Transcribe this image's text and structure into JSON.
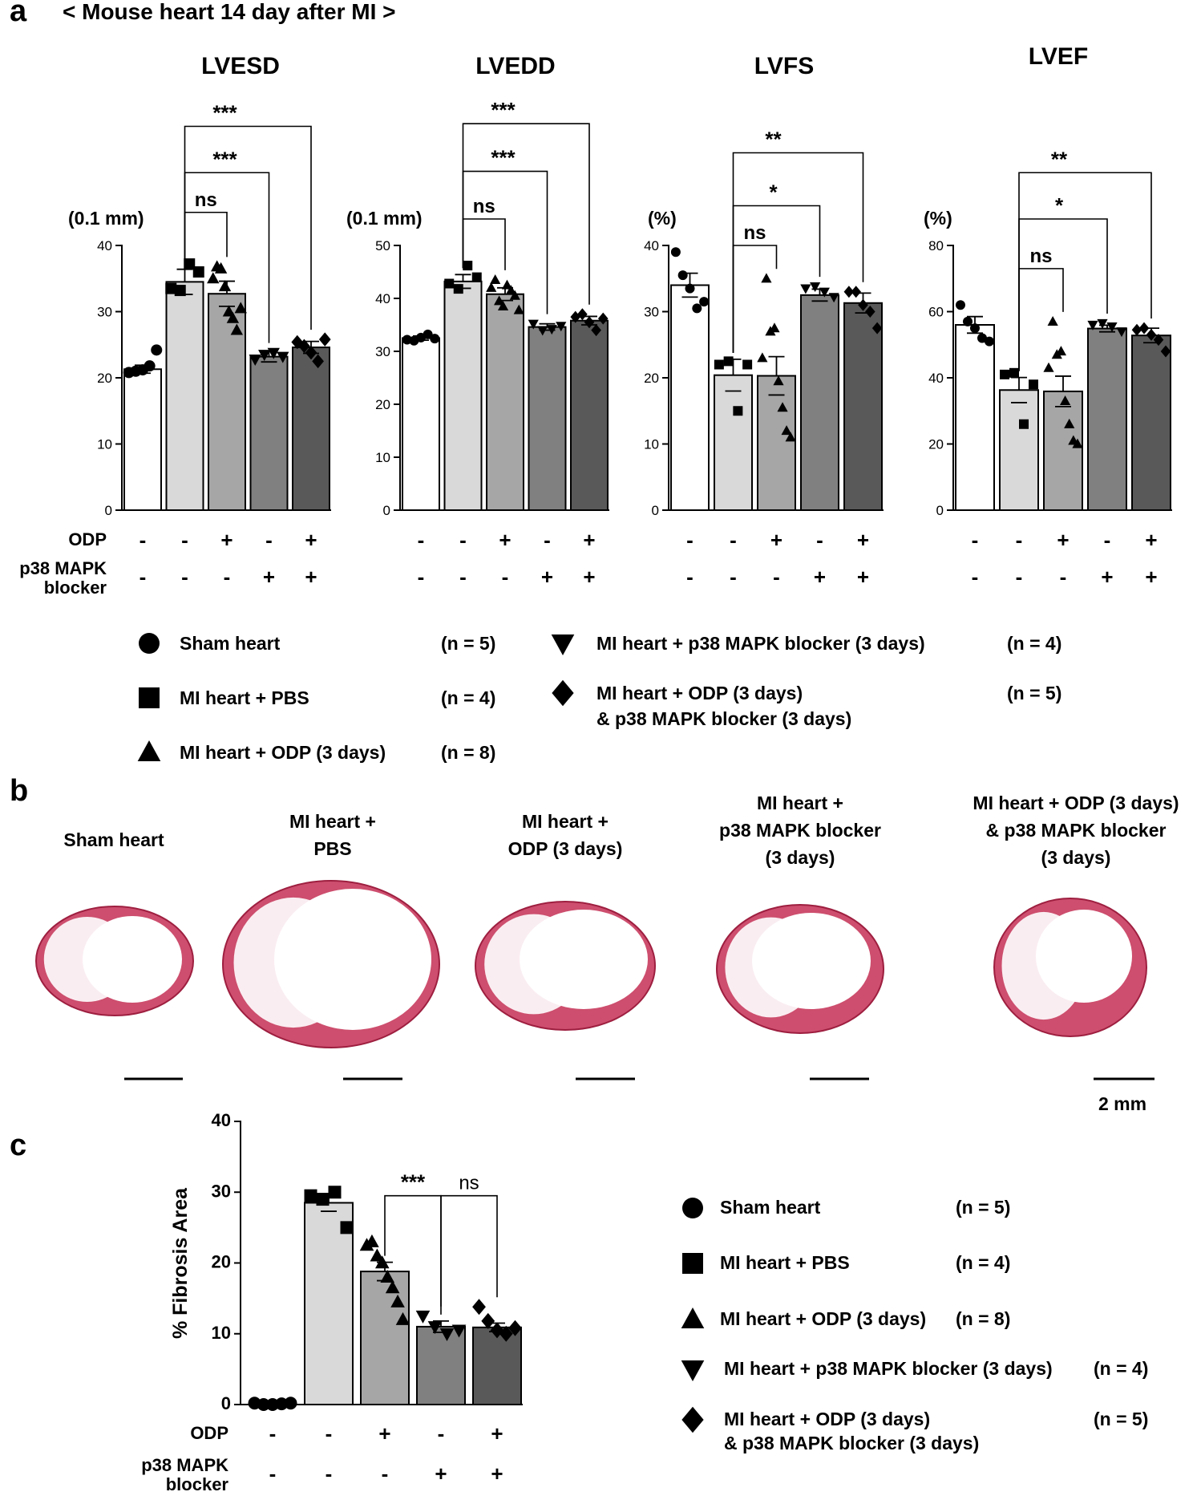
{
  "header": {
    "panel_a_label": "a",
    "title": "< Mouse heart 14 day after MI >",
    "panel_b_label": "b",
    "panel_c_label": "c"
  },
  "factor_labels": {
    "odp": "ODP",
    "p38_line1": "p38 MAPK",
    "p38_line2": "blocker"
  },
  "colors": {
    "sham": "#ffffff",
    "pbs": "#d9d9d9",
    "odp": "#a6a6a6",
    "p38": "#808080",
    "combo": "#595959",
    "tissue": "#c42f55"
  },
  "legend": {
    "items": [
      {
        "marker": "circle",
        "label": "Sham heart",
        "n": "(n = 5)"
      },
      {
        "marker": "square",
        "label": "MI heart + PBS",
        "n": "(n = 4)"
      },
      {
        "marker": "triangle-up",
        "label": "MI heart + ODP (3 days)",
        "n": "(n = 8)"
      },
      {
        "marker": "triangle-down",
        "label": "MI heart + p38 MAPK blocker (3 days)",
        "n": "(n = 4)"
      },
      {
        "marker": "diamond",
        "label": "MI heart + ODP (3 days)",
        "label2": "& p38 MAPK blocker (3 days)",
        "n": "(n = 5)"
      }
    ]
  },
  "legend_c": {
    "items": [
      {
        "marker": "circle",
        "label": "Sham heart",
        "n": "(n = 5)"
      },
      {
        "marker": "square",
        "label": "MI heart + PBS",
        "n": "(n = 4)"
      },
      {
        "marker": "triangle-up",
        "label": "MI heart + ODP (3 days)",
        "n": "(n = 8)"
      },
      {
        "marker": "triangle-down",
        "label": "MI heart + p38 MAPK blocker (3 days)",
        "n": "(n = 4)"
      },
      {
        "marker": "diamond",
        "label": "MI heart + ODP (3 days)",
        "label2": "& p38 MAPK blocker (3 days)",
        "n": "(n = 5)"
      }
    ]
  },
  "histology": {
    "columns": [
      {
        "lines": [
          "Sham heart"
        ]
      },
      {
        "lines": [
          "MI heart +",
          "PBS"
        ]
      },
      {
        "lines": [
          "MI heart +",
          "ODP (3 days)"
        ]
      },
      {
        "lines": [
          "MI heart +",
          "p38 MAPK blocker",
          "(3 days)"
        ]
      },
      {
        "lines": [
          "MI heart + ODP (3 days)",
          "& p38 MAPK blocker",
          "(3 days)"
        ]
      }
    ],
    "scale_bar_label": "2 mm"
  },
  "chart_data": [
    {
      "id": "lvesd",
      "type": "bar",
      "title": "LVESD",
      "ylabel": "(0.1 mm)",
      "ylim": [
        0,
        40
      ],
      "yticks": [
        0,
        10,
        20,
        30,
        40
      ],
      "categories": [
        "Sham heart",
        "MI heart + PBS",
        "MI heart + ODP (3 days)",
        "MI heart + p38 MAPK blocker (3 days)",
        "MI heart + ODP (3 days) & p38 MAPK blocker (3 days)"
      ],
      "odp": [
        "-",
        "-",
        "+",
        "-",
        "+"
      ],
      "p38": [
        "-",
        "-",
        "-",
        "+",
        "+"
      ],
      "values": [
        21.3,
        34.5,
        32.7,
        23.2,
        24.6
      ],
      "sem": [
        0.6,
        1.9,
        1.9,
        0.8,
        0.9
      ],
      "points": [
        [
          20.8,
          21.0,
          21.2,
          21.8,
          24.2
        ],
        [
          33.5,
          33.2,
          37.2,
          36.0
        ],
        [
          35.0,
          36.8,
          36.5,
          33.8,
          30.0,
          29.0,
          27.2,
          30.5
        ],
        [
          22.8,
          23.5,
          23.8,
          23.2
        ],
        [
          25.4,
          24.8,
          23.8,
          22.5,
          25.8
        ]
      ],
      "comparisons": [
        {
          "from": 1,
          "to": 2,
          "label": "ns",
          "y": 45
        },
        {
          "from": 1,
          "to": 3,
          "label": "***",
          "y": 51
        },
        {
          "from": 1,
          "to": 4,
          "label": "***",
          "y": 58
        }
      ]
    },
    {
      "id": "lvedd",
      "type": "bar",
      "title": "LVEDD",
      "ylabel": "(0.1 mm)",
      "ylim": [
        0,
        50
      ],
      "yticks": [
        0,
        10,
        20,
        30,
        40,
        50
      ],
      "categories": [
        "Sham heart",
        "MI heart + PBS",
        "MI heart + ODP (3 days)",
        "MI heart + p38 MAPK blocker (3 days)",
        "MI heart + ODP (3 days) & p38 MAPK blocker (3 days)"
      ],
      "odp": [
        "-",
        "-",
        "+",
        "-",
        "+"
      ],
      "p38": [
        "-",
        "-",
        "-",
        "+",
        "+"
      ],
      "values": [
        32.5,
        43.2,
        40.8,
        34.6,
        35.8
      ],
      "sem": [
        0.4,
        1.3,
        1.2,
        0.6,
        0.8
      ],
      "points": [
        [
          32.2,
          32.0,
          32.6,
          33.2,
          32.4
        ],
        [
          42.8,
          41.8,
          46.2,
          44.0
        ],
        [
          42.0,
          43.5,
          39.5,
          38.5,
          42.5,
          41.5,
          40.5,
          37.8
        ],
        [
          35.2,
          34.0,
          34.2,
          34.8
        ],
        [
          36.5,
          37.0,
          35.5,
          34.0,
          36.2
        ]
      ],
      "comparisons": [
        {
          "from": 1,
          "to": 2,
          "label": "ns",
          "y": 55
        },
        {
          "from": 1,
          "to": 3,
          "label": "***",
          "y": 64
        },
        {
          "from": 1,
          "to": 4,
          "label": "***",
          "y": 73
        }
      ]
    },
    {
      "id": "lvfs",
      "type": "bar",
      "title": "LVFS",
      "ylabel": "(%)",
      "ylim": [
        0,
        40
      ],
      "yticks": [
        0,
        10,
        20,
        30,
        40
      ],
      "categories": [
        "Sham heart",
        "MI heart + PBS",
        "MI heart + ODP (3 days)",
        "MI heart + p38 MAPK blocker (3 days)",
        "MI heart + ODP (3 days) & p38 MAPK blocker (3 days)"
      ],
      "odp": [
        "-",
        "-",
        "+",
        "-",
        "+"
      ],
      "p38": [
        "-",
        "-",
        "-",
        "+",
        "+"
      ],
      "values": [
        34.0,
        20.4,
        20.3,
        32.5,
        31.3
      ],
      "sem": [
        1.8,
        2.4,
        2.9,
        0.9,
        1.5
      ],
      "points": [
        [
          39.0,
          35.5,
          33.5,
          30.5,
          31.5
        ],
        [
          22.0,
          22.5,
          15.0,
          22.0
        ],
        [
          23.0,
          35.0,
          27.0,
          27.5,
          19.5,
          15.5,
          12.0,
          11.0
        ],
        [
          33.5,
          33.8,
          33.0,
          32.2
        ],
        [
          33.0,
          33.0,
          31.0,
          30.0,
          27.5
        ]
      ],
      "comparisons": [
        {
          "from": 1,
          "to": 2,
          "label": "ns",
          "y": 40
        },
        {
          "from": 1,
          "to": 3,
          "label": "*",
          "y": 46
        },
        {
          "from": 1,
          "to": 4,
          "label": "**",
          "y": 54
        }
      ]
    },
    {
      "id": "lvef",
      "type": "bar",
      "title": "LVEF",
      "ylabel": "(%)",
      "ylim": [
        0,
        80
      ],
      "yticks": [
        0,
        20,
        40,
        60,
        80
      ],
      "categories": [
        "Sham heart",
        "MI heart + PBS",
        "MI heart + ODP (3 days)",
        "MI heart + p38 MAPK blocker (3 days)",
        "MI heart + ODP (3 days) & p38 MAPK blocker (3 days)"
      ],
      "odp": [
        "-",
        "-",
        "+",
        "-",
        "+"
      ],
      "p38": [
        "-",
        "-",
        "-",
        "+",
        "+"
      ],
      "values": [
        56.0,
        36.3,
        35.9,
        54.9,
        52.8
      ],
      "sem": [
        2.5,
        3.8,
        4.6,
        1.0,
        2.2
      ],
      "points": [
        [
          62.0,
          57.0,
          55.0,
          52.0,
          51.0
        ],
        [
          41.0,
          41.5,
          26.0,
          38.0
        ],
        [
          43.0,
          57.0,
          47.0,
          48.0,
          33.0,
          26.0,
          21.0,
          20.0
        ],
        [
          56.0,
          56.5,
          55.5,
          54.0
        ],
        [
          54.5,
          55.0,
          53.0,
          51.5,
          48.0
        ]
      ],
      "comparisons": [
        {
          "from": 1,
          "to": 2,
          "label": "ns",
          "y": 73
        },
        {
          "from": 1,
          "to": 3,
          "label": "*",
          "y": 88
        },
        {
          "from": 1,
          "to": 4,
          "label": "**",
          "y": 102
        }
      ]
    },
    {
      "id": "fibrosis",
      "type": "bar",
      "title": "",
      "ylabel": "% Fibrosis Area",
      "ylim": [
        0,
        40
      ],
      "yticks": [
        0,
        10,
        20,
        30,
        40
      ],
      "categories": [
        "Sham heart",
        "MI heart + PBS",
        "MI heart + ODP (3 days)",
        "MI heart + p38 MAPK blocker (3 days)",
        "MI heart + ODP (3 days) & p38 MAPK blocker (3 days)"
      ],
      "odp": [
        "-",
        "-",
        "+",
        "-",
        "+"
      ],
      "p38": [
        "-",
        "-",
        "-",
        "+",
        "+"
      ],
      "values": [
        0.0,
        28.5,
        18.8,
        11.0,
        10.9
      ],
      "sem": [
        0.0,
        1.2,
        1.3,
        0.8,
        0.6
      ],
      "points": [
        [
          0.2,
          0.0,
          0.0,
          0.1,
          0.2
        ],
        [
          29.5,
          29.0,
          30.0,
          25.0
        ],
        [
          22.5,
          23.0,
          21.0,
          20.0,
          18.0,
          16.5,
          14.5,
          12.0
        ],
        [
          12.5,
          11.0,
          10.0,
          10.5
        ],
        [
          13.8,
          11.8,
          10.5,
          10.0,
          10.8
        ]
      ],
      "comparisons": [
        {
          "from": 2,
          "to": 3,
          "label": "***",
          "y": 29.5
        },
        {
          "from": 3,
          "to": 4,
          "label": "ns",
          "y": 29.5
        }
      ]
    }
  ]
}
